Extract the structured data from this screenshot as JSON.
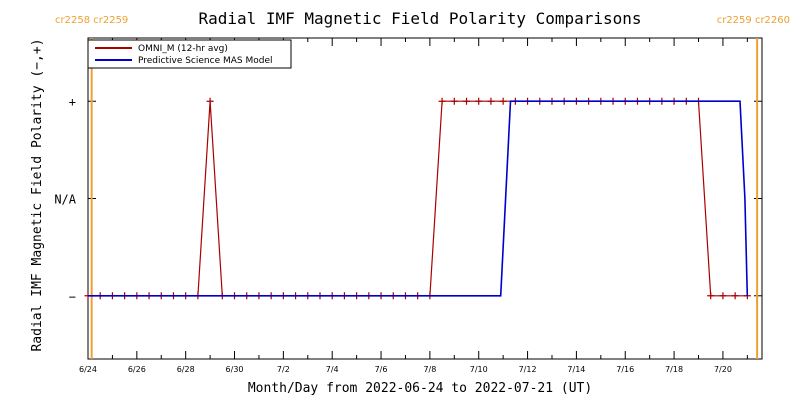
{
  "chart_data": {
    "type": "line",
    "title": "Radial IMF Magnetic Field Polarity Comparisons",
    "xlabel": "Month/Day from 2022-06-24 to 2022-07-21 (UT)",
    "ylabel": "Radial IMF Magnetic Field Polarity (−,+)",
    "xlim": [
      0,
      27.6
    ],
    "ylim": [
      -1.65,
      1.65
    ],
    "x_ticks": [
      {
        "x": 0,
        "label": "6/24"
      },
      {
        "x": 2,
        "label": "6/26"
      },
      {
        "x": 4,
        "label": "6/28"
      },
      {
        "x": 6,
        "label": "6/30"
      },
      {
        "x": 8,
        "label": "7/2"
      },
      {
        "x": 10,
        "label": "7/4"
      },
      {
        "x": 12,
        "label": "7/6"
      },
      {
        "x": 14,
        "label": "7/8"
      },
      {
        "x": 16,
        "label": "7/10"
      },
      {
        "x": 18,
        "label": "7/12"
      },
      {
        "x": 20,
        "label": "7/14"
      },
      {
        "x": 22,
        "label": "7/16"
      },
      {
        "x": 24,
        "label": "7/18"
      },
      {
        "x": 26,
        "label": "7/20"
      }
    ],
    "y_ticks": [
      {
        "y": 1,
        "label": "+"
      },
      {
        "y": 0,
        "label": "N/A"
      },
      {
        "y": -1,
        "label": "−"
      }
    ],
    "legend": {
      "placement": "top-left",
      "entries": [
        "OMNI_M (12-hr avg)",
        "Predictive Science MAS Model"
      ]
    },
    "rotation_markers": [
      {
        "x": 0.15,
        "label": "cr2258 cr2259",
        "side": "left"
      },
      {
        "x": 27.4,
        "label": "cr2259 cr2260",
        "side": "right"
      }
    ],
    "series": [
      {
        "name": "OMNI_M (12-hr avg)",
        "color": "#aa0000",
        "markers": "plus",
        "x": [
          0,
          0.5,
          1,
          1.5,
          2,
          2.5,
          3,
          3.5,
          4,
          4.5,
          5,
          5.5,
          6,
          6.5,
          7,
          7.5,
          8,
          8.5,
          9,
          9.5,
          10,
          10.5,
          11,
          11.5,
          12,
          12.5,
          13,
          13.5,
          14,
          14.5,
          15,
          15.5,
          16,
          16.5,
          17,
          17.5,
          18,
          18.5,
          19,
          19.5,
          20,
          20.5,
          21,
          21.5,
          22,
          22.5,
          23,
          23.5,
          24,
          24.5,
          25,
          25.5,
          26,
          26.5,
          27
        ],
        "y": [
          -1,
          -1,
          -1,
          -1,
          -1,
          -1,
          -1,
          -1,
          -1,
          -1,
          1,
          -1,
          -1,
          -1,
          -1,
          -1,
          -1,
          -1,
          -1,
          -1,
          -1,
          -1,
          -1,
          -1,
          -1,
          -1,
          -1,
          -1,
          -1,
          1,
          1,
          1,
          1,
          1,
          1,
          1,
          1,
          1,
          1,
          1,
          1,
          1,
          1,
          1,
          1,
          1,
          1,
          1,
          1,
          1,
          1,
          -1,
          -1,
          -1,
          -1
        ]
      },
      {
        "name": "Predictive Science MAS Model",
        "color": "#0000cc",
        "markers": "none",
        "x": [
          0,
          16.9,
          17.3,
          26.7,
          26.9,
          27.0
        ],
        "y": [
          -1,
          -1,
          1,
          1,
          0,
          -1
        ]
      }
    ],
    "colors": {
      "omni": "#aa0000",
      "model": "#0000cc",
      "rotation": "#f0a030"
    },
    "grid": false
  }
}
